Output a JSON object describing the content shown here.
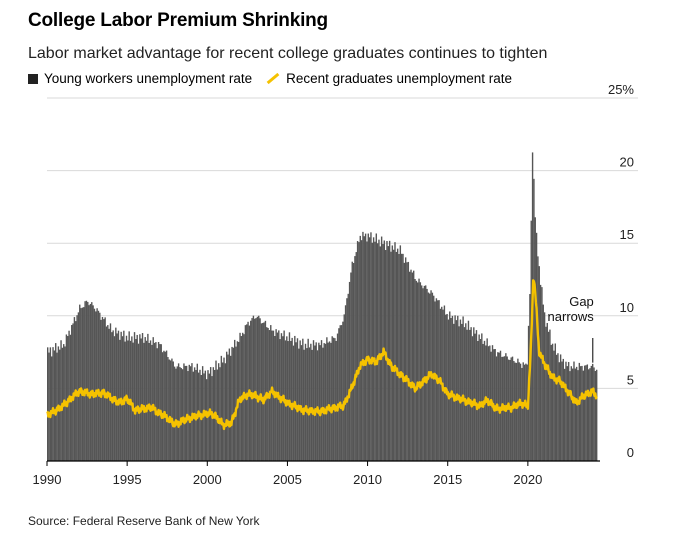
{
  "chart_data": {
    "type": "bar",
    "title": "College Labor Premium Shrinking",
    "subtitle": "Labor market advantage for recent college graduates continues to tighten",
    "source": "Source: Federal Reserve Bank of New York",
    "legend": [
      {
        "name": "Young workers unemployment rate",
        "color": "#222222",
        "kind": "bar"
      },
      {
        "name": "Recent graduates unemployment rate",
        "color": "#f5c200",
        "kind": "line"
      }
    ],
    "ylim": [
      0,
      25
    ],
    "y_ticks": [
      "0",
      "5",
      "10",
      "15",
      "20",
      "25%"
    ],
    "x_ticks": [
      "1990",
      "1995",
      "2000",
      "2005",
      "2010",
      "2015",
      "2020"
    ],
    "xlim": [
      1990,
      2024.5
    ],
    "annotation": {
      "lines": [
        "Gap",
        "narrows"
      ],
      "x": 2024.3,
      "y": 7.6
    },
    "young_workers": {
      "x": [
        1990,
        1991,
        1992,
        1992.5,
        1993,
        1994,
        1995,
        1996,
        1997,
        1998,
        1999,
        2000,
        2001,
        2002,
        2002.5,
        2003,
        2004,
        2005,
        2006,
        2007,
        2008,
        2008.5,
        2009,
        2009.5,
        2010,
        2011,
        2012,
        2013,
        2014,
        2015,
        2016,
        2017,
        2018,
        2019,
        2019.9,
        2020.1,
        2020.25,
        2020.35,
        2020.45,
        2020.6,
        2020.8,
        2021,
        2021.5,
        2022,
        2022.5,
        2023,
        2023.5,
        2024,
        2024.3
      ],
      "values": [
        7.5,
        8.0,
        10.5,
        11.0,
        10.5,
        9.0,
        8.5,
        8.5,
        8.0,
        6.5,
        6.5,
        6.0,
        7.0,
        8.5,
        9.5,
        10.0,
        9.0,
        8.5,
        8.0,
        8.0,
        8.5,
        10.0,
        13.5,
        15.5,
        15.5,
        15.0,
        14.5,
        12.5,
        11.5,
        10.0,
        9.5,
        8.5,
        7.5,
        7.0,
        6.5,
        12.0,
        21.5,
        19.0,
        16.0,
        14.0,
        12.0,
        10.0,
        8.0,
        7.0,
        6.5,
        6.5,
        6.5,
        6.5,
        6.3
      ]
    },
    "recent_grads": {
      "x": [
        1990,
        1990.3,
        1991,
        1992,
        1992.8,
        1993.5,
        1994.5,
        1995,
        1995.5,
        1996.5,
        1997,
        1997.5,
        1998,
        1998.5,
        1999,
        1999.7,
        2000.3,
        2001,
        2001.5,
        2002,
        2002.5,
        2003,
        2003.5,
        2004,
        2005,
        2006,
        2007,
        2007.7,
        2008.5,
        2009,
        2009.5,
        2010,
        2010.5,
        2011,
        2011.5,
        2012,
        2012.5,
        2013,
        2013.5,
        2014,
        2014.5,
        2015,
        2016,
        2017,
        2017.5,
        2018,
        2019,
        2019.6,
        2020,
        2020.2,
        2020.35,
        2020.5,
        2020.7,
        2021,
        2021.5,
        2022,
        2022.5,
        2023,
        2023.5,
        2024,
        2024.3
      ],
      "values": [
        3.2,
        3.3,
        3.8,
        4.8,
        4.6,
        4.7,
        4.0,
        4.3,
        3.5,
        3.7,
        3.3,
        3.0,
        2.5,
        2.8,
        3.0,
        3.2,
        3.3,
        2.5,
        2.6,
        4.2,
        4.6,
        4.5,
        4.2,
        4.8,
        4.0,
        3.5,
        3.4,
        3.6,
        3.8,
        5.0,
        6.5,
        7.0,
        6.8,
        7.5,
        6.5,
        6.0,
        5.5,
        5.0,
        5.5,
        6.0,
        5.5,
        4.6,
        4.2,
        3.8,
        4.2,
        3.6,
        3.7,
        4.0,
        3.8,
        8.0,
        13.0,
        11.0,
        7.5,
        6.8,
        5.8,
        5.5,
        4.8,
        4.0,
        4.5,
        4.8,
        4.5
      ]
    }
  }
}
